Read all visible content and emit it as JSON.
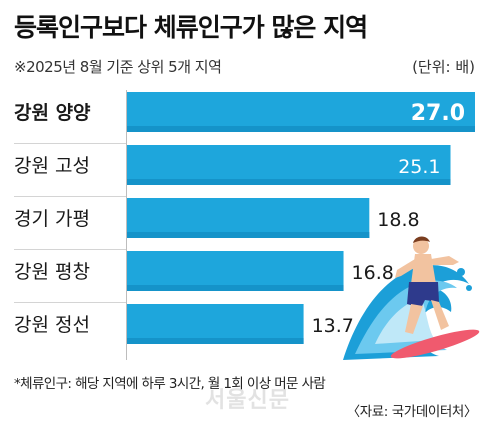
{
  "header": {
    "title": "등록인구보다 체류인구가 많은 지역",
    "subtitle": "※2025년 8월 기준 상위 5개 지역",
    "unit": "(단위: 배)"
  },
  "chart_data": {
    "type": "bar",
    "orientation": "horizontal",
    "title": "등록인구보다 체류인구가 많은 지역",
    "categories": [
      "강원 양양",
      "강원 고성",
      "경기 가평",
      "강원 평창",
      "강원 정선"
    ],
    "values": [
      27.0,
      25.1,
      18.8,
      16.8,
      13.7
    ],
    "value_labels": [
      "27.0",
      "25.1",
      "18.8",
      "16.8",
      "13.7"
    ],
    "highlight_index": 0,
    "grid": false,
    "legend": "none"
  },
  "footnote": "*체류인구: 해당 지역에 하루 3시간, 월 1회 이상 머문 사람",
  "source": "〈자료: 국가데이터처〉",
  "watermark": "서울신문",
  "colors": {
    "bar_fill": "#1ea6dc",
    "bar_fill_dark": "#1593c9",
    "label_text": "#1a1a1a",
    "value_inside": "#ffffff"
  },
  "icons": [
    "surfer-illustration"
  ]
}
